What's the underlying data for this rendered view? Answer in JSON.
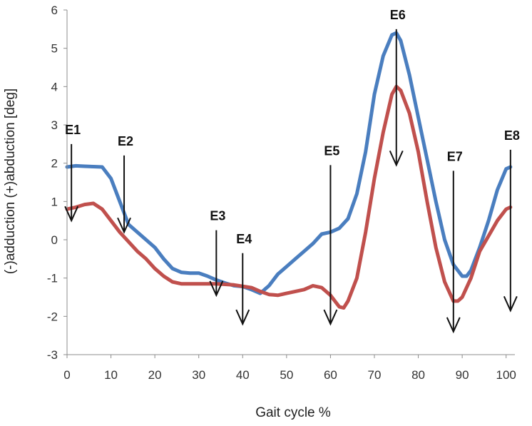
{
  "chart_data": {
    "type": "line",
    "title": "",
    "xlabel": "Gait cycle %",
    "ylabel": "(-)adduction (+)abduction [deg]",
    "xlim": [
      0,
      102
    ],
    "ylim": [
      -3,
      6
    ],
    "x_ticks": [
      "0",
      "10",
      "20",
      "30",
      "40",
      "50",
      "60",
      "70",
      "80",
      "90",
      "100"
    ],
    "y_ticks": [
      "-3",
      "-2",
      "-1",
      "0",
      "1",
      "2",
      "3",
      "4",
      "5",
      "6"
    ],
    "grid": false,
    "legend": "none",
    "series": [
      {
        "color": "#4a7ebf",
        "points": [
          [
            0,
            1.9
          ],
          [
            2,
            1.93
          ],
          [
            4,
            1.92
          ],
          [
            6,
            1.91
          ],
          [
            8,
            1.9
          ],
          [
            10,
            1.6
          ],
          [
            12,
            1.0
          ],
          [
            14,
            0.4
          ],
          [
            16,
            0.2
          ],
          [
            18,
            0.0
          ],
          [
            20,
            -0.2
          ],
          [
            22,
            -0.5
          ],
          [
            24,
            -0.75
          ],
          [
            26,
            -0.85
          ],
          [
            28,
            -0.87
          ],
          [
            30,
            -0.87
          ],
          [
            32,
            -0.95
          ],
          [
            34,
            -1.05
          ],
          [
            36,
            -1.13
          ],
          [
            38,
            -1.2
          ],
          [
            40,
            -1.22
          ],
          [
            42,
            -1.3
          ],
          [
            44,
            -1.4
          ],
          [
            46,
            -1.2
          ],
          [
            48,
            -0.9
          ],
          [
            50,
            -0.7
          ],
          [
            52,
            -0.5
          ],
          [
            54,
            -0.3
          ],
          [
            56,
            -0.1
          ],
          [
            58,
            0.15
          ],
          [
            60,
            0.2
          ],
          [
            62,
            0.3
          ],
          [
            64,
            0.55
          ],
          [
            66,
            1.2
          ],
          [
            68,
            2.3
          ],
          [
            70,
            3.8
          ],
          [
            72,
            4.8
          ],
          [
            74,
            5.35
          ],
          [
            75,
            5.4
          ],
          [
            76,
            5.2
          ],
          [
            78,
            4.3
          ],
          [
            80,
            3.2
          ],
          [
            82,
            2.1
          ],
          [
            84,
            1.0
          ],
          [
            86,
            0.0
          ],
          [
            88,
            -0.65
          ],
          [
            90,
            -0.95
          ],
          [
            91,
            -0.95
          ],
          [
            92,
            -0.8
          ],
          [
            94,
            -0.2
          ],
          [
            96,
            0.5
          ],
          [
            98,
            1.3
          ],
          [
            100,
            1.85
          ],
          [
            101,
            1.9
          ]
        ]
      },
      {
        "color": "#c0504d",
        "points": [
          [
            0,
            0.8
          ],
          [
            2,
            0.85
          ],
          [
            4,
            0.92
          ],
          [
            6,
            0.95
          ],
          [
            8,
            0.8
          ],
          [
            10,
            0.5
          ],
          [
            12,
            0.2
          ],
          [
            14,
            -0.05
          ],
          [
            16,
            -0.3
          ],
          [
            18,
            -0.5
          ],
          [
            20,
            -0.75
          ],
          [
            22,
            -0.95
          ],
          [
            24,
            -1.1
          ],
          [
            26,
            -1.15
          ],
          [
            28,
            -1.15
          ],
          [
            30,
            -1.15
          ],
          [
            34,
            -1.15
          ],
          [
            38,
            -1.18
          ],
          [
            42,
            -1.25
          ],
          [
            44,
            -1.35
          ],
          [
            46,
            -1.43
          ],
          [
            48,
            -1.45
          ],
          [
            50,
            -1.4
          ],
          [
            52,
            -1.35
          ],
          [
            54,
            -1.3
          ],
          [
            56,
            -1.2
          ],
          [
            58,
            -1.25
          ],
          [
            60,
            -1.45
          ],
          [
            62,
            -1.75
          ],
          [
            63,
            -1.78
          ],
          [
            64,
            -1.6
          ],
          [
            66,
            -1.0
          ],
          [
            68,
            0.2
          ],
          [
            70,
            1.6
          ],
          [
            72,
            2.8
          ],
          [
            74,
            3.8
          ],
          [
            75,
            4.0
          ],
          [
            76,
            3.9
          ],
          [
            78,
            3.3
          ],
          [
            80,
            2.3
          ],
          [
            82,
            1.0
          ],
          [
            84,
            -0.2
          ],
          [
            86,
            -1.1
          ],
          [
            88,
            -1.6
          ],
          [
            89,
            -1.6
          ],
          [
            90,
            -1.5
          ],
          [
            92,
            -1.0
          ],
          [
            94,
            -0.3
          ],
          [
            96,
            0.1
          ],
          [
            98,
            0.5
          ],
          [
            100,
            0.8
          ],
          [
            101,
            0.85
          ]
        ]
      }
    ],
    "events": [
      {
        "label": "E1",
        "x": 1,
        "y_from": 2.5,
        "y_to": 0.5
      },
      {
        "label": "E2",
        "x": 13,
        "y_from": 2.2,
        "y_to": 0.2
      },
      {
        "label": "E3",
        "x": 34,
        "y_from": 0.25,
        "y_to": -1.45
      },
      {
        "label": "E4",
        "x": 40,
        "y_from": -0.35,
        "y_to": -2.2
      },
      {
        "label": "E5",
        "x": 60,
        "y_from": 1.95,
        "y_to": -2.2
      },
      {
        "label": "E6",
        "x": 75,
        "y_from": 5.5,
        "y_to": 1.95
      },
      {
        "label": "E7",
        "x": 88,
        "y_from": 1.8,
        "y_to": -2.4
      },
      {
        "label": "E8",
        "x": 101,
        "y_from": 2.35,
        "y_to": -1.85
      }
    ]
  }
}
